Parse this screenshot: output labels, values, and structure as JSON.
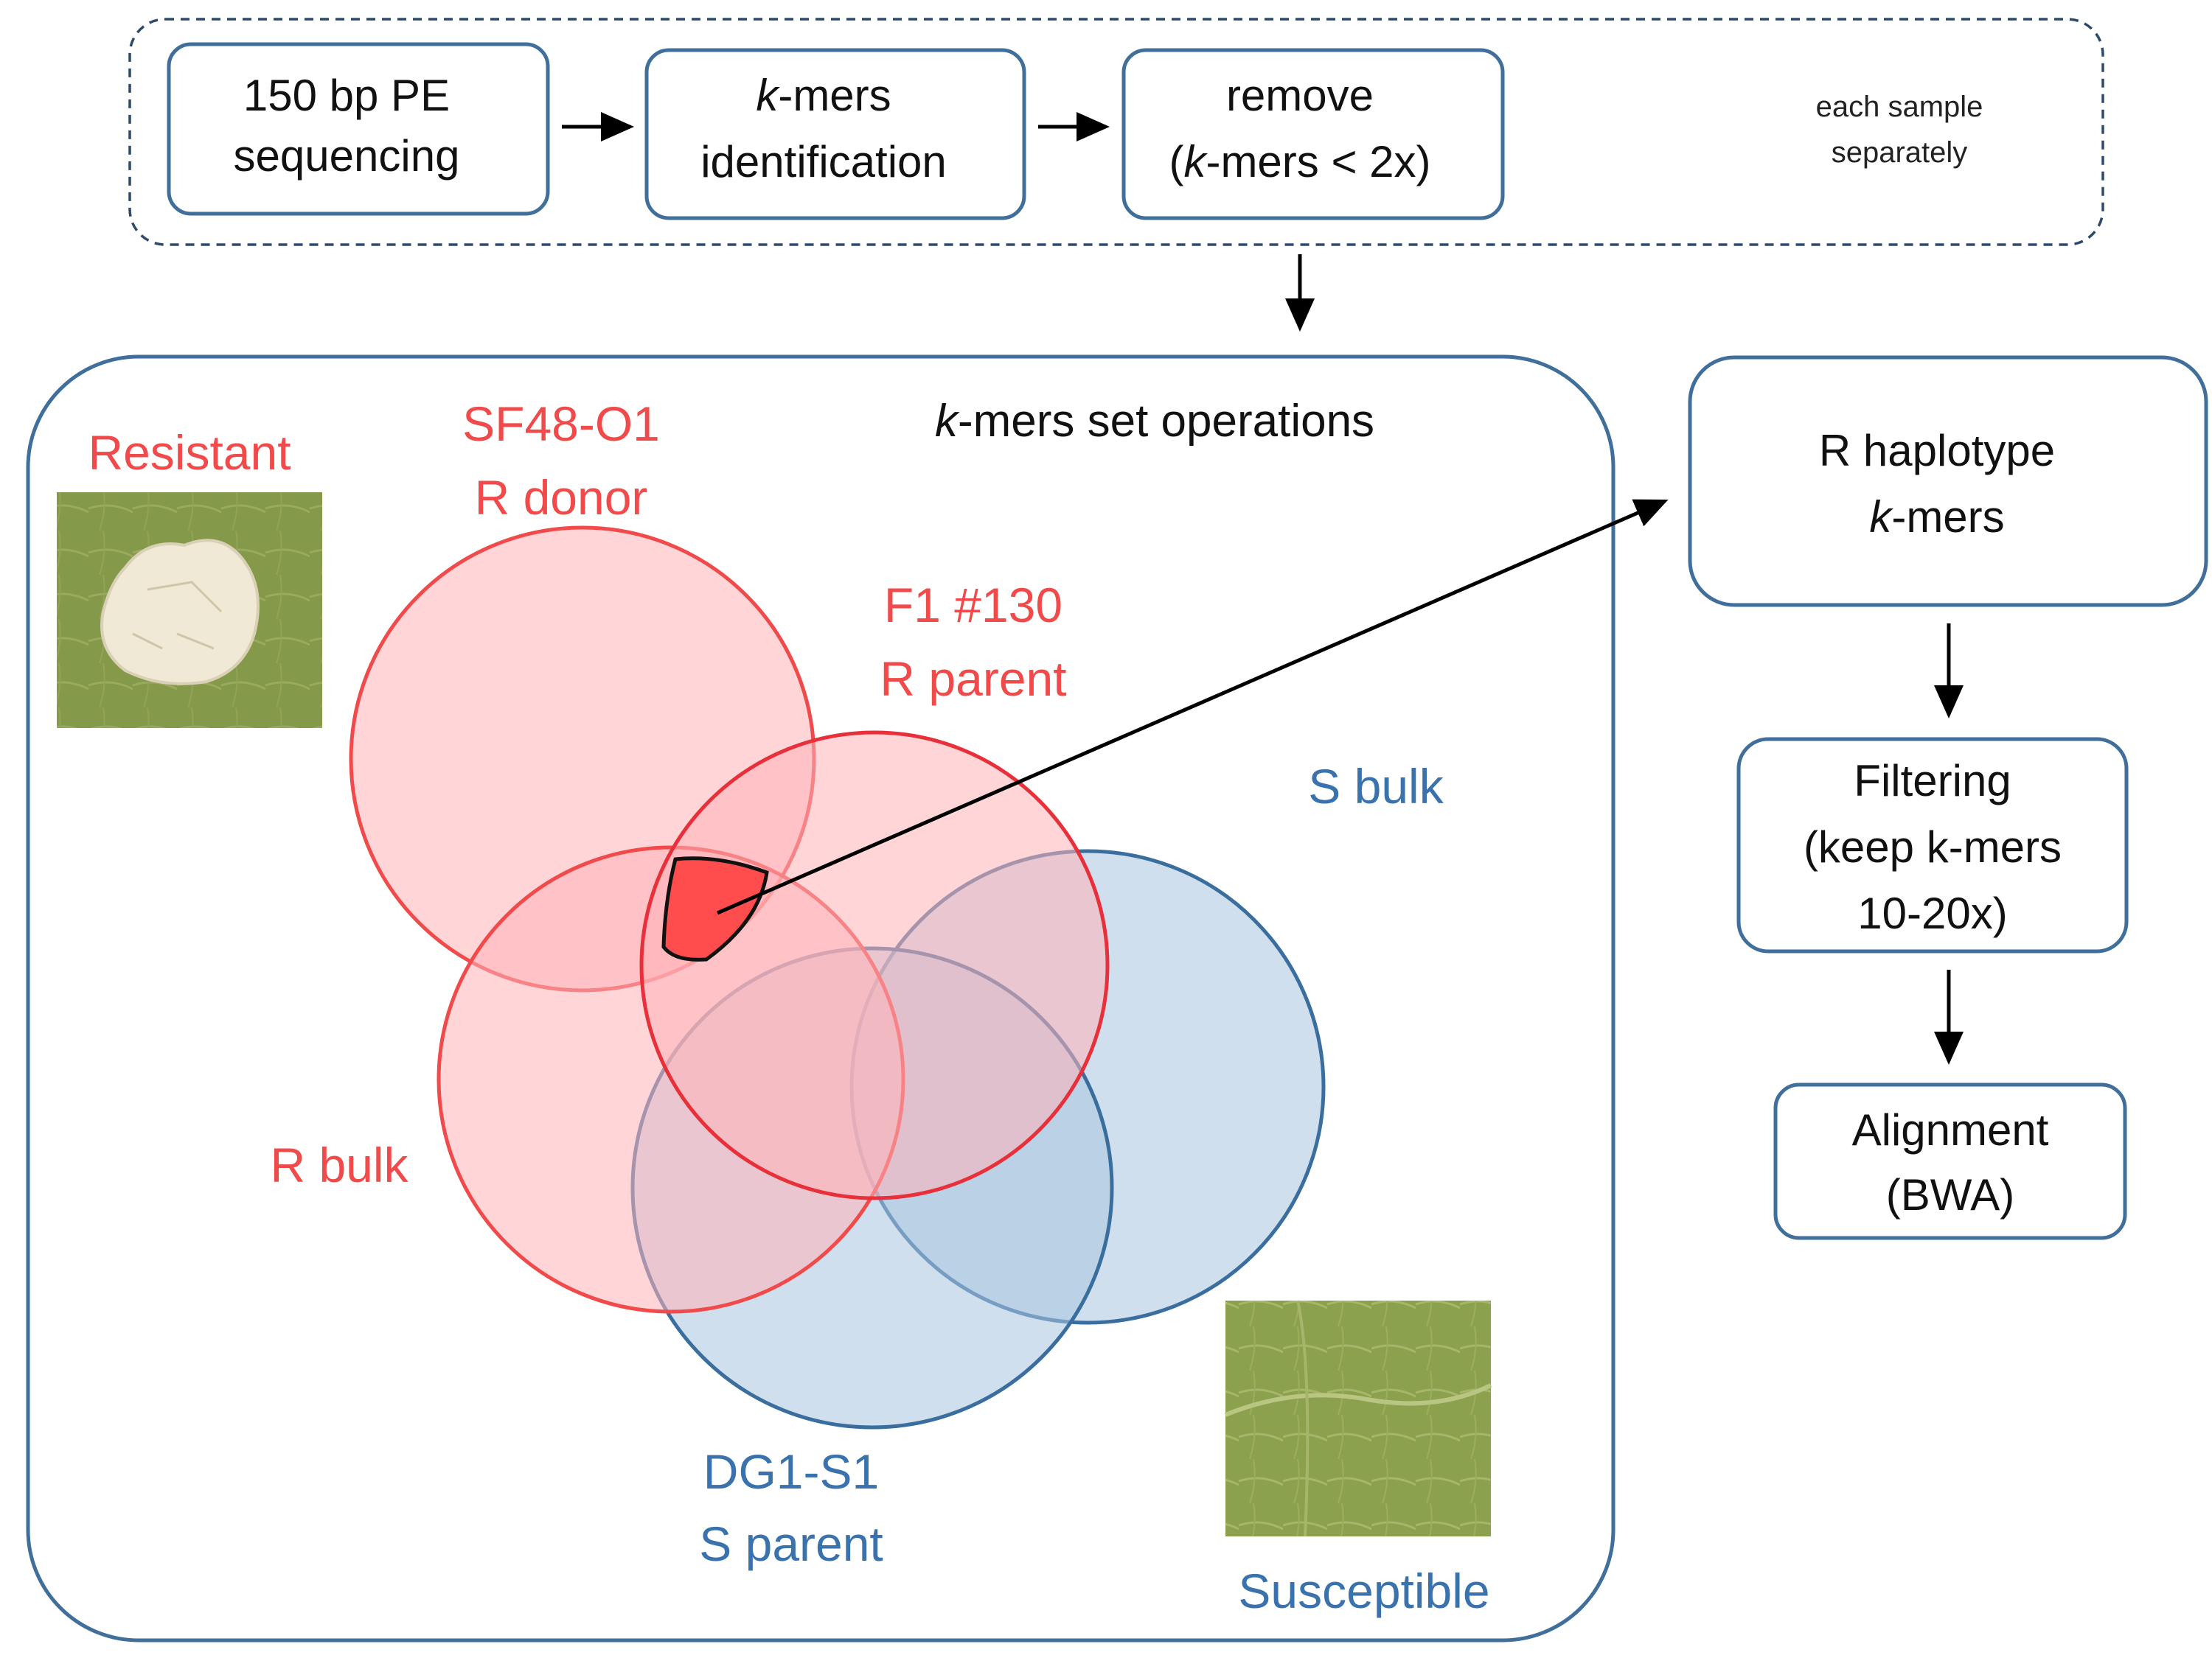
{
  "pipeline": {
    "step1": {
      "line1": "150 bp PE",
      "line2": "sequencing"
    },
    "step2": {
      "line1_italic": "k",
      "line1_rest": "-mers",
      "line2": "identification"
    },
    "step3": {
      "line1": "remove",
      "line2_open": "(",
      "line2_italic": "k",
      "line2_rest": "-mers < 2x)"
    },
    "note": {
      "line1": "each sample",
      "line2": "separately"
    }
  },
  "set_operations": {
    "title_italic": "k",
    "title_rest": "-mers set operations",
    "resistant_label": "Resistant",
    "susceptible_label": "Susceptible",
    "sets": {
      "r_donor": {
        "line1": "SF48-O1",
        "line2": "R donor"
      },
      "f1": {
        "line1": "F1 #130",
        "line2": "R parent"
      },
      "r_bulk": {
        "line1": "R bulk"
      },
      "s_bulk": {
        "line1": "S bulk"
      },
      "s_parent": {
        "line1": "DG1-S1",
        "line2": "S parent"
      }
    }
  },
  "right_flow": {
    "haplotype": {
      "line1": "R haplotype",
      "line2_italic": "k",
      "line2_rest": "-mers"
    },
    "filtering": {
      "line1": "Filtering",
      "line2": "(keep k-mers",
      "line3": "10-20x)"
    },
    "alignment": {
      "line1": "Alignment",
      "line2": "(BWA)"
    }
  },
  "colors": {
    "box_border": "#3f6f9a",
    "red": "#f04a4a",
    "blue": "#3a72ae",
    "red_fill": "#ffb3b8",
    "blue_fill": "#a9c4e0",
    "highlight": "#ff4d4d"
  }
}
